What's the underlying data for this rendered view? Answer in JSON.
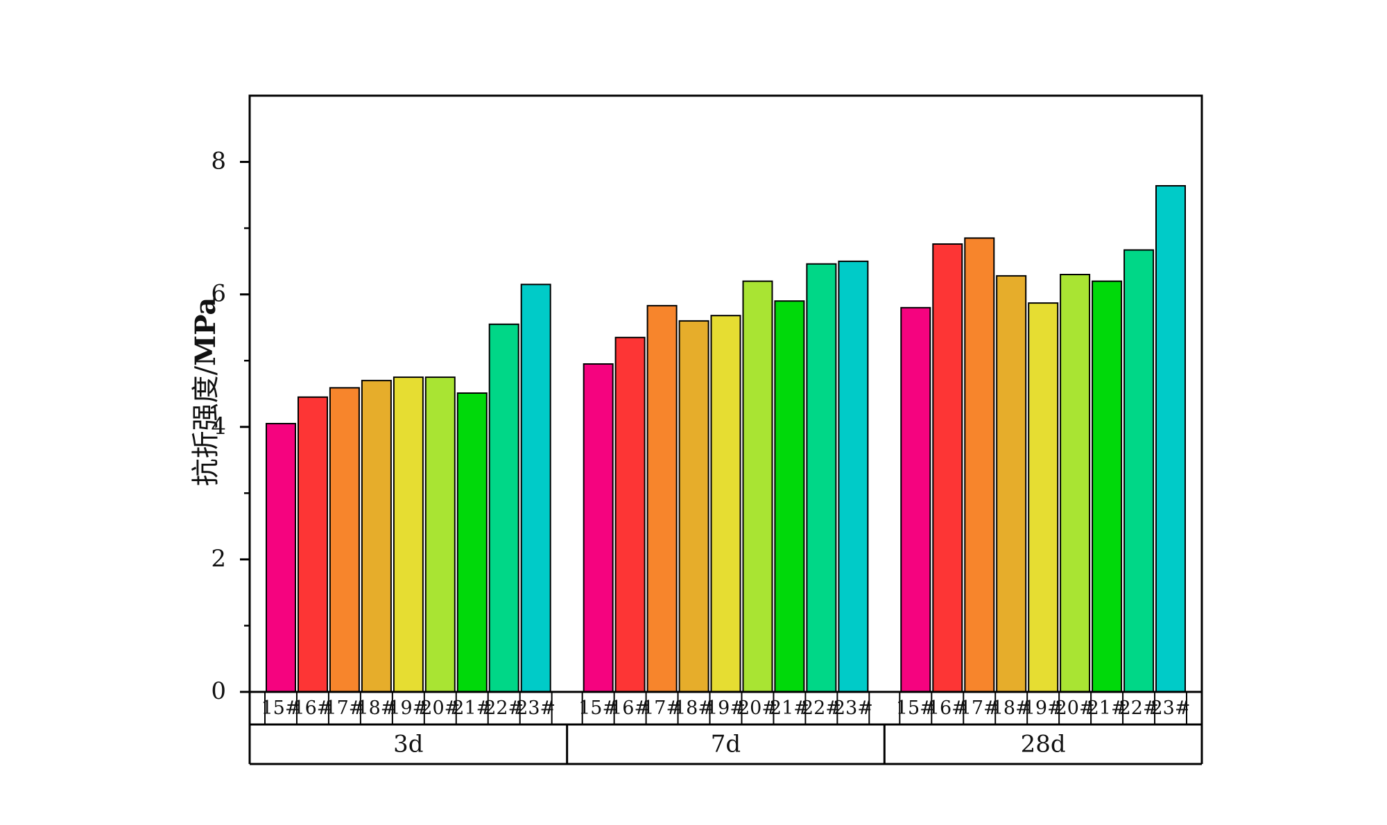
{
  "chart_data": {
    "type": "bar",
    "title": "",
    "ylabel": "抗折强度/MPa",
    "ylabel_parts": {
      "cn": "抗折强度/",
      "unit": "MPa"
    },
    "ylim": [
      0,
      9
    ],
    "yticks": [
      0,
      2,
      4,
      6,
      8
    ],
    "grid": false,
    "legend": "none",
    "groups": [
      {
        "name": "3d",
        "categories": [
          "15#",
          "16#",
          "17#",
          "18#",
          "19#",
          "20#",
          "21#",
          "22#",
          "23#"
        ],
        "values": [
          4.05,
          4.45,
          4.59,
          4.7,
          4.75,
          4.75,
          4.51,
          5.55,
          6.15
        ]
      },
      {
        "name": "7d",
        "categories": [
          "15#",
          "16#",
          "17#",
          "18#",
          "19#",
          "20#",
          "21#",
          "22#",
          "23#"
        ],
        "values": [
          4.95,
          5.35,
          5.83,
          5.6,
          5.68,
          6.2,
          5.9,
          6.46,
          6.5
        ]
      },
      {
        "name": "28d",
        "categories": [
          "15#",
          "16#",
          "17#",
          "18#",
          "19#",
          "20#",
          "21#",
          "22#",
          "23#"
        ],
        "values": [
          5.8,
          6.76,
          6.85,
          6.28,
          5.87,
          6.3,
          6.2,
          6.67,
          7.64
        ]
      }
    ],
    "colors": [
      "#f5037f",
      "#fd3535",
      "#f7852c",
      "#e6ad2b",
      "#e6dd32",
      "#a9e433",
      "#00d90a",
      "#00d787",
      "#00cbc8"
    ]
  }
}
